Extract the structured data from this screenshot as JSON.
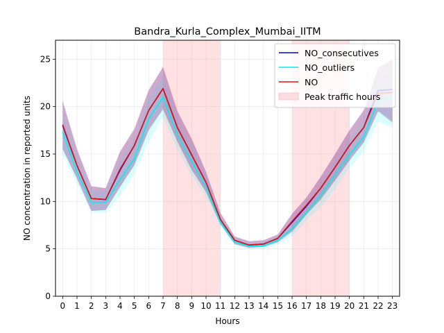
{
  "chart_data": {
    "type": "line",
    "title": "Bandra_Kurla_Complex_Mumbai_IITM",
    "xlabel": "Hours",
    "ylabel": "NO concentration in reported units",
    "x": [
      0,
      1,
      2,
      3,
      4,
      5,
      6,
      7,
      8,
      9,
      10,
      11,
      12,
      13,
      14,
      15,
      16,
      17,
      18,
      19,
      20,
      21,
      22,
      23
    ],
    "xlim": [
      -0.5,
      23.5
    ],
    "ylim": [
      0,
      27
    ],
    "yticks": [
      0,
      5,
      10,
      15,
      20,
      25
    ],
    "grid": true,
    "legend_position": "upper right",
    "peak_traffic_hours": [
      [
        7,
        11
      ],
      [
        16,
        20
      ]
    ],
    "series": [
      {
        "name": "NO_consecutives",
        "color": "#0000cc",
        "band_color": "#6b2a8a",
        "values": [
          18.0,
          13.8,
          10.3,
          10.2,
          13.3,
          15.9,
          19.6,
          21.9,
          17.8,
          14.9,
          12.0,
          8.1,
          5.9,
          5.4,
          5.5,
          6.1,
          7.8,
          9.5,
          11.4,
          13.6,
          15.9,
          17.8,
          21.7,
          21.8
        ],
        "lower": [
          15.5,
          12.4,
          9.0,
          9.1,
          11.5,
          13.8,
          17.5,
          19.7,
          16.3,
          13.3,
          11.0,
          7.6,
          5.5,
          5.1,
          5.2,
          5.7,
          6.8,
          8.6,
          10.2,
          12.2,
          14.3,
          16.2,
          19.5,
          18.3
        ],
        "upper": [
          20.6,
          15.5,
          11.6,
          11.4,
          15.2,
          17.6,
          21.7,
          24.2,
          19.5,
          16.6,
          13.1,
          8.8,
          6.3,
          5.8,
          5.9,
          6.5,
          8.7,
          10.4,
          12.6,
          15.0,
          17.5,
          19.6,
          24.1,
          25.0
        ]
      },
      {
        "name": "NO_outliers",
        "color": "#00eeee",
        "band_color": "#00ffff",
        "values": [
          17.3,
          13.1,
          9.9,
          9.9,
          12.3,
          14.5,
          18.7,
          21.0,
          17.0,
          14.2,
          11.5,
          7.8,
          5.7,
          5.3,
          5.3,
          5.9,
          7.1,
          8.8,
          10.6,
          12.8,
          14.9,
          16.8,
          20.6,
          21.0
        ],
        "lower": [
          15.0,
          11.9,
          8.8,
          8.8,
          10.6,
          12.9,
          16.3,
          18.9,
          15.4,
          12.7,
          10.5,
          7.3,
          5.4,
          5.0,
          5.0,
          5.5,
          6.3,
          8.0,
          9.4,
          11.3,
          13.5,
          15.3,
          18.4,
          17.8
        ],
        "upper": [
          19.5,
          14.7,
          11.1,
          11.0,
          14.3,
          16.5,
          20.8,
          23.2,
          18.7,
          15.8,
          12.6,
          8.4,
          6.1,
          5.6,
          5.7,
          6.3,
          8.0,
          9.8,
          11.8,
          14.2,
          16.5,
          18.5,
          22.8,
          23.9
        ]
      },
      {
        "name": "NO",
        "color": "#dd1111",
        "band_color": "#c87cb4",
        "values": [
          18.1,
          13.8,
          10.3,
          10.2,
          13.4,
          15.9,
          19.6,
          21.9,
          17.8,
          14.9,
          12.0,
          8.1,
          5.9,
          5.4,
          5.5,
          6.1,
          7.9,
          9.6,
          11.4,
          13.6,
          15.9,
          17.8,
          21.4,
          21.5
        ],
        "lower": [
          15.6,
          12.4,
          9.0,
          9.1,
          11.6,
          13.9,
          17.6,
          19.8,
          16.3,
          13.4,
          11.0,
          7.6,
          5.5,
          5.1,
          5.2,
          5.7,
          6.9,
          8.7,
          10.3,
          12.3,
          14.4,
          16.3,
          19.6,
          18.5
        ],
        "upper": [
          20.6,
          15.5,
          11.6,
          11.4,
          15.3,
          17.7,
          21.8,
          24.1,
          19.6,
          16.6,
          13.1,
          8.8,
          6.3,
          5.8,
          5.9,
          6.5,
          8.7,
          10.4,
          12.6,
          15.0,
          17.5,
          19.6,
          24.0,
          24.9
        ]
      }
    ],
    "legend": [
      {
        "label": "NO_consecutives",
        "kind": "line",
        "color": "#0000cc"
      },
      {
        "label": "NO_outliers",
        "kind": "line",
        "color": "#00eeee"
      },
      {
        "label": "NO",
        "kind": "line",
        "color": "#dd1111"
      },
      {
        "label": "Peak traffic hours",
        "kind": "patch",
        "color": "#ffdde0"
      }
    ]
  }
}
